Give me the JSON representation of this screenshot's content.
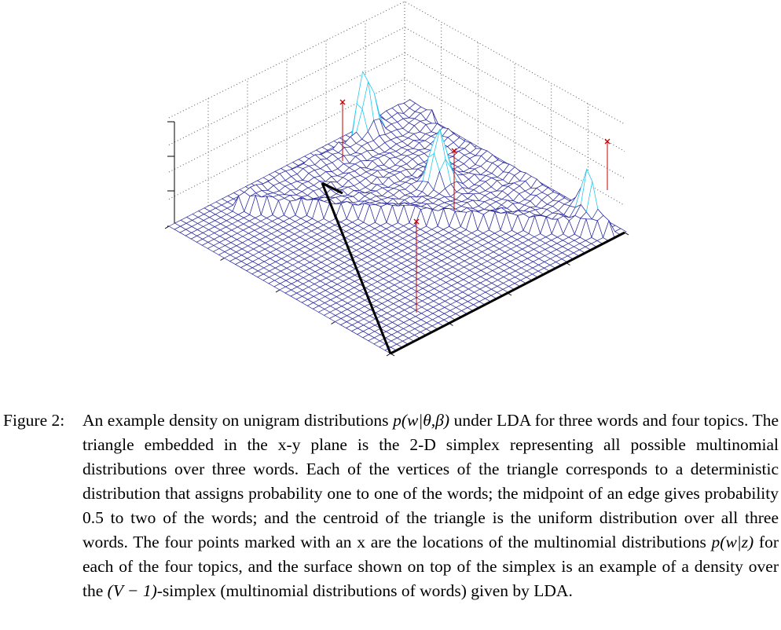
{
  "figure": {
    "description_marks": "4 red x markers at topic locations",
    "colors": {
      "grid": "#2a2aa0",
      "axes": "#000000",
      "box": "#555555",
      "peak_highlight": "#22c8ee",
      "marker": "#cc0000"
    }
  },
  "caption": {
    "label": "Figure 2:",
    "seg1": "An example density on unigram distributions ",
    "math1": "p(w|θ,β)",
    "seg2": " under LDA for three words and four topics. The triangle embedded in the x-y plane is the 2-D simplex representing all possible multinomial distributions over three words. Each of the vertices of the triangle corresponds to a deterministic distribution that assigns probability one to one of the words; the midpoint of an edge gives probability 0.5 to two of the words; and the centroid of the triangle is the uniform distribution over all three words. The four points marked with an x are the locations of the multinomial distributions ",
    "math2": "p(w|z)",
    "seg3": " for each of the four topics, and the surface shown on top of the simplex is an example of a density over the ",
    "math3": "(V − 1)",
    "seg4": "-simplex (multinomial distributions of words) given by LDA."
  }
}
